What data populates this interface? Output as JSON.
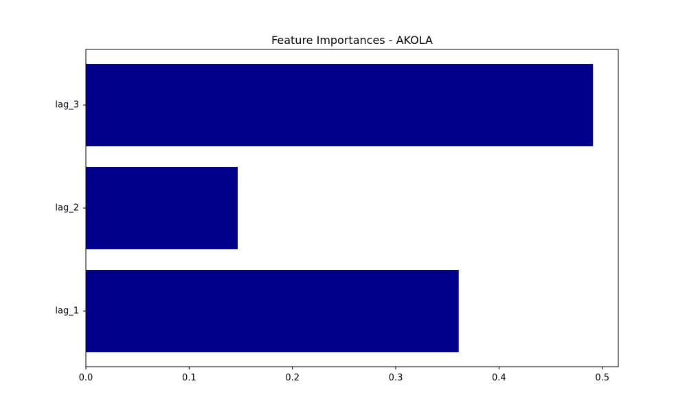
{
  "chart_data": {
    "type": "bar",
    "orientation": "horizontal",
    "title": "Feature Importances - AKOLA",
    "xlabel": "",
    "ylabel": "",
    "categories": [
      "lag_1",
      "lag_2",
      "lag_3"
    ],
    "values": [
      0.361,
      0.147,
      0.491
    ],
    "xlim": [
      0,
      0.5155
    ],
    "xticks": [
      "0.0",
      "0.1",
      "0.2",
      "0.3",
      "0.4",
      "0.5"
    ],
    "grid": false,
    "bar_color": "#00008b"
  }
}
